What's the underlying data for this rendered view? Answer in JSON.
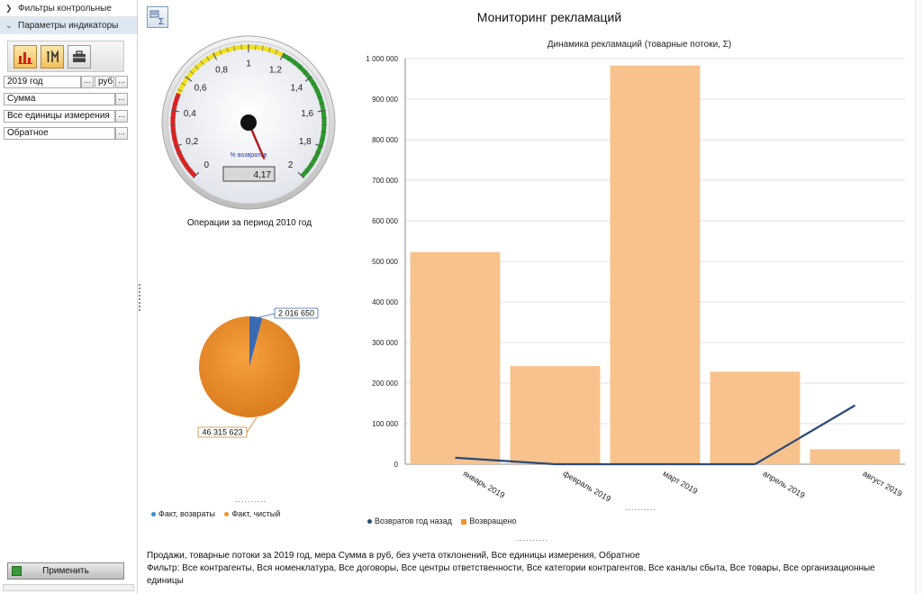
{
  "left_panel": {
    "filters_header": "Фильтры контрольные",
    "params_header": "Параметры индикаторы",
    "year_field": "2019 год",
    "currency_field": "руб",
    "measure_field": "Сумма",
    "units_field": "Все единицы измерения",
    "direction_field": "Обратное",
    "dots_label": "...",
    "apply_label": "Применить"
  },
  "main_title": "Мониторинг рекламаций",
  "gauge": {
    "title": "Операции за период 2010 год",
    "unit_label": "% возвратов",
    "value_text": "4,17",
    "value": 4.17,
    "min": 0,
    "max": 2,
    "ticks": [
      "0",
      "0,2",
      "0,4",
      "0,6",
      "0,8",
      "1",
      "1,2",
      "1,4",
      "1,6",
      "1,8",
      "2"
    ],
    "zone_colors": {
      "low": "#e02020",
      "mid": "#f0e020",
      "high": "#2a9a2a"
    }
  },
  "chart_data": [
    {
      "type": "pie",
      "labels": [
        "Факт, возвраты",
        "Факт, чистый"
      ],
      "values": [
        2016650,
        46315623
      ],
      "value_labels": [
        "2 016 650",
        "46 315 623"
      ],
      "colors": [
        "#3a6ab0",
        "#f0932a"
      ]
    },
    {
      "type": "bar",
      "title": "Динамика рекламаций (товарные потоки, Σ)",
      "categories": [
        "январь 2019",
        "февраль 2019",
        "март 2019",
        "апрель 2019",
        "август 2019"
      ],
      "series": [
        {
          "name": "Возвращено",
          "type": "bar",
          "values": [
            523000,
            242000,
            983000,
            228000,
            37000
          ],
          "color": "#f7c28c"
        },
        {
          "name": "Возвратов год назад",
          "type": "line",
          "values": [
            16000,
            0,
            0,
            0,
            145000
          ],
          "color": "#2a4a7a"
        }
      ],
      "ylim": [
        0,
        1000000
      ],
      "y_ticks": [
        "0",
        "100 000",
        "200 000",
        "300 000",
        "400 000",
        "500 000",
        "600 000",
        "700 000",
        "800 000",
        "900 000",
        "1 000 000"
      ],
      "grid": true,
      "legend": "bottom-left"
    }
  ],
  "pie_legend": {
    "dots": "..........",
    "items": [
      "Факт, возвраты",
      "Факт, чистый"
    ],
    "colors": [
      "#3a8ad8",
      "#f0932a"
    ]
  },
  "bar_legend": {
    "dots": "..........",
    "items": [
      "Возвратов год назад",
      "Возвращено"
    ]
  },
  "footer": {
    "line1": "Продажи, товарные потоки за 2019 год, мера Сумма в руб, без учета отклонений, Все единицы измерения, Обратное",
    "line2": "Фильтр: Все контрагенты, Вся номенклатура, Все договоры, Все центры ответственности, Все категории контрагентов, Все каналы сбыта, Все товары, Все организационные единицы"
  }
}
